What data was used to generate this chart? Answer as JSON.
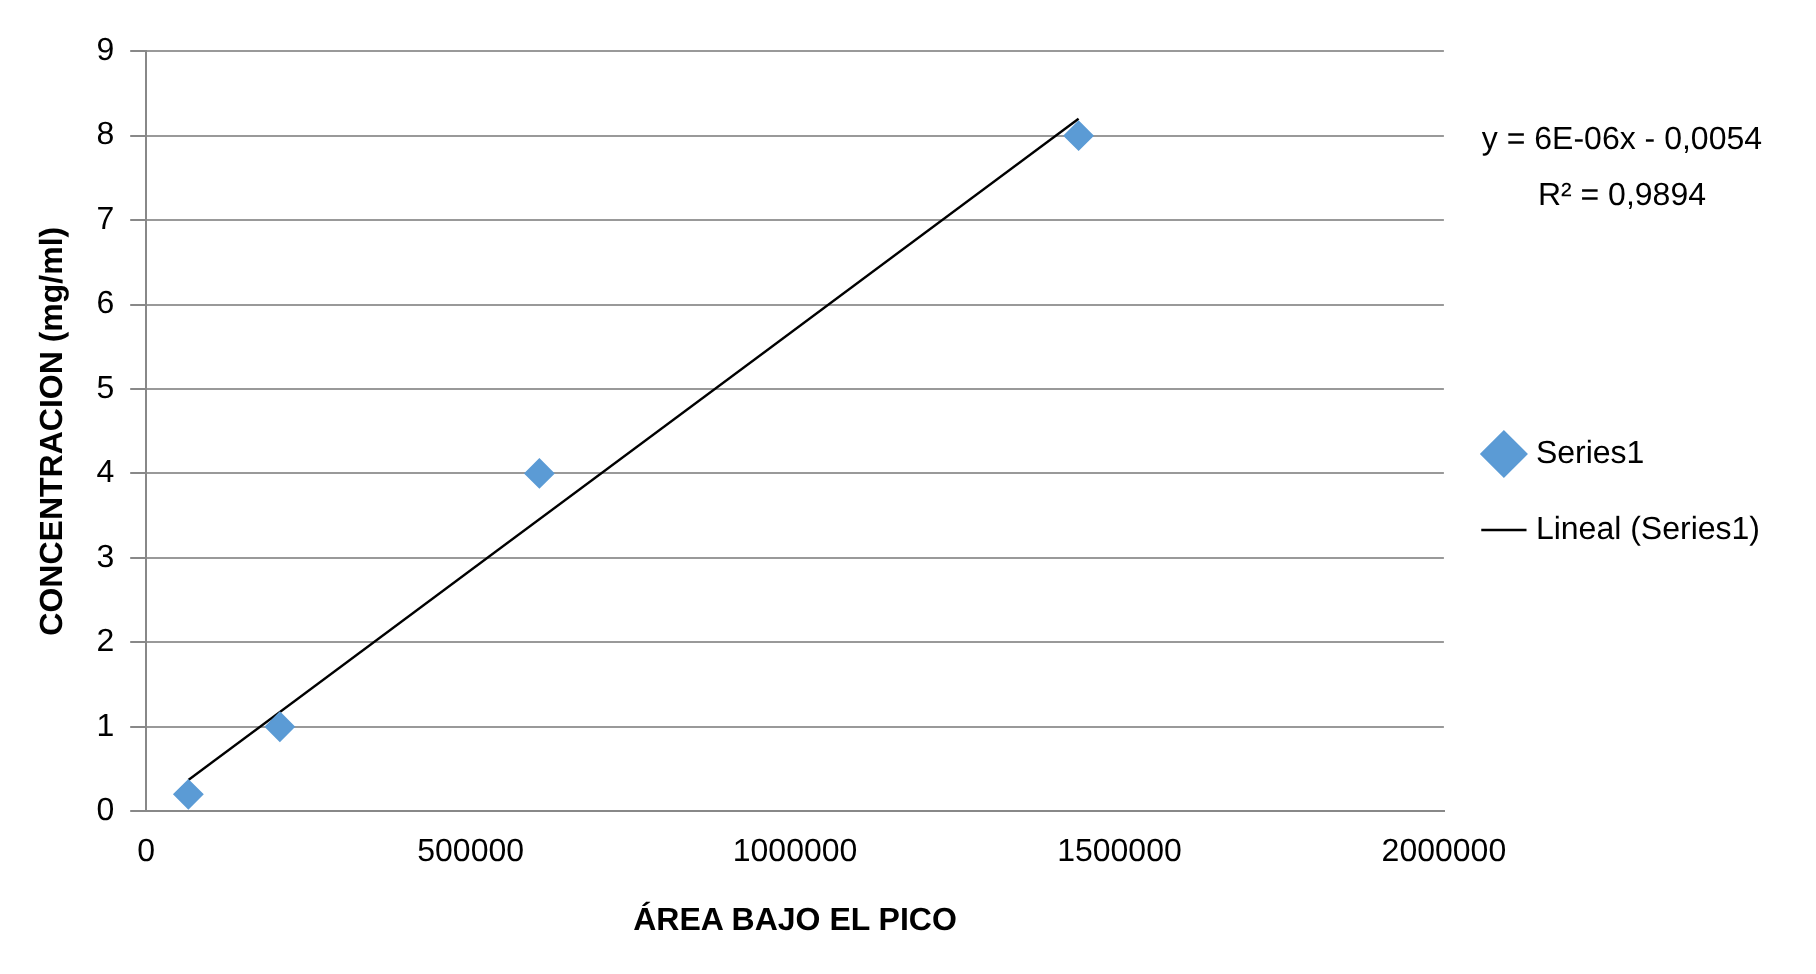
{
  "chart_data": {
    "type": "scatter",
    "xlabel": "ÁREA BAJO EL PICO",
    "ylabel": "CONCENTRACION (mg/ml)",
    "series": [
      {
        "name": "Series1",
        "color": "#5b9bd5",
        "x": [
          65000,
          206000,
          606000,
          1437000
        ],
        "values": [
          0.2,
          1,
          4,
          8
        ],
        "marker": "diamond"
      },
      {
        "name": "Lineal (Series1)",
        "type": "line",
        "color": "#000000",
        "x": [
          65000,
          1437000
        ],
        "values": [
          0.37,
          8.2
        ],
        "marker": "none"
      }
    ],
    "annotations": [
      "y = 6E-06x - 0,0054",
      "R² = 0,9894"
    ],
    "xlim": [
      0,
      2000000
    ],
    "xticks": [
      0,
      500000,
      1000000,
      1500000,
      2000000
    ],
    "ylim": [
      0,
      9
    ],
    "yticks": [
      0,
      1,
      2,
      3,
      4,
      5,
      6,
      7,
      8,
      9
    ],
    "grid": "y",
    "legend": "right"
  }
}
